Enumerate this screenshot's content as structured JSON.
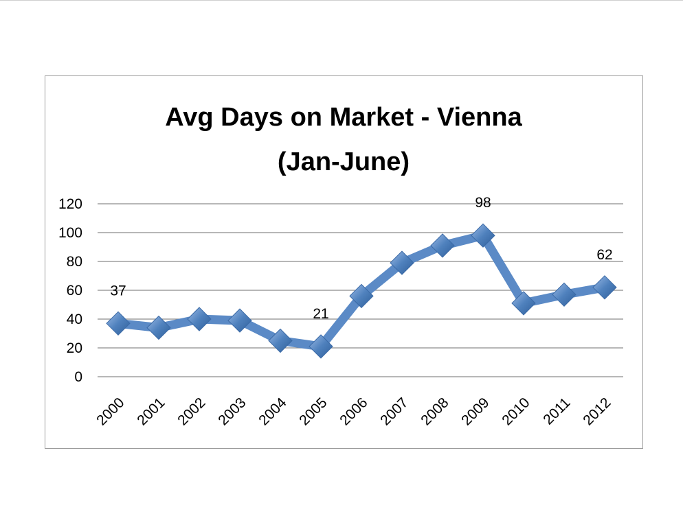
{
  "chart_data": {
    "type": "line",
    "title": [
      "Avg Days on Market - Vienna",
      "(Jan-June)"
    ],
    "xlabel": "",
    "ylabel": "",
    "categories": [
      "2000",
      "2001",
      "2002",
      "2003",
      "2004",
      "2005",
      "2006",
      "2007",
      "2008",
      "2009",
      "2010",
      "2011",
      "2012"
    ],
    "series": [
      {
        "values": [
          37,
          34,
          40,
          39,
          25,
          21,
          56,
          79,
          91,
          98,
          51,
          57,
          62
        ]
      }
    ],
    "data_labels": [
      {
        "index": 0,
        "text": "37"
      },
      {
        "index": 5,
        "text": "21"
      },
      {
        "index": 9,
        "text": "98"
      },
      {
        "index": 12,
        "text": "62"
      }
    ],
    "ylim": [
      0,
      120
    ],
    "yticks": [
      0,
      20,
      40,
      60,
      80,
      100,
      120
    ],
    "grid": true,
    "legend": "none",
    "colors": {
      "line": "#5b8ac6",
      "marker": "#4f81bd",
      "grid": "#8c8c8c"
    }
  }
}
